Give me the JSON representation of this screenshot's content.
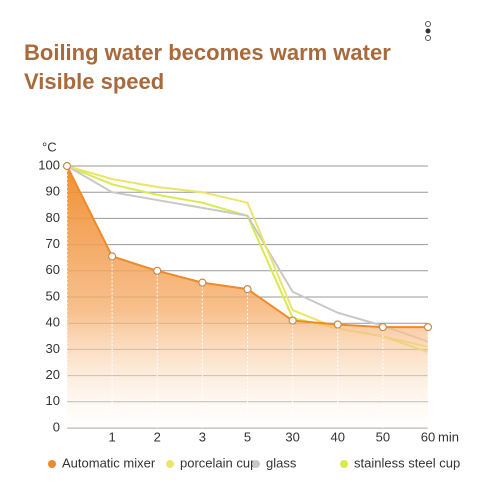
{
  "chart_data": {
    "type": "line",
    "title_lines": [
      "Boiling water becomes warm water",
      "Visible speed"
    ],
    "y_label": "°C",
    "x_unit": "min",
    "categories": [
      null,
      "1",
      "2",
      "3",
      "5",
      "30",
      "40",
      "50",
      "60"
    ],
    "ylim": [
      0,
      100
    ],
    "yticks": [
      0,
      10,
      20,
      30,
      40,
      50,
      60,
      70,
      80,
      90,
      100
    ],
    "grid": true,
    "series": [
      {
        "name": "Automatic mixer",
        "color": "#ef8a2a",
        "area": true,
        "markers": true,
        "values": [
          100,
          65.5,
          60,
          55.5,
          53,
          41,
          39.5,
          38.5,
          38.5
        ]
      },
      {
        "name": "porcelain cup",
        "color": "#ece46a",
        "values": [
          100,
          95,
          92,
          90,
          86,
          45,
          38,
          35,
          31
        ]
      },
      {
        "name": "glass",
        "color": "#c8c8c8",
        "values": [
          100,
          90,
          87,
          84,
          81,
          52,
          44,
          39,
          33
        ]
      },
      {
        "name": "stainless steel cup",
        "color": "#d8ea4c",
        "values": [
          100,
          93,
          89,
          86,
          81,
          42,
          38,
          35,
          29
        ]
      }
    ]
  }
}
